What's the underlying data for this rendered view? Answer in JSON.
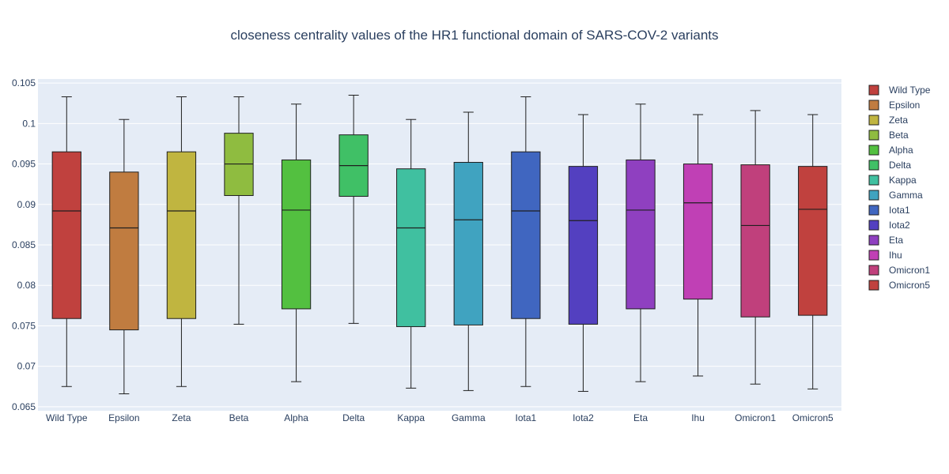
{
  "chart_data": {
    "type": "box",
    "title": "closeness centrality values of the HR1 functional domain of SARS-COV-2 variants",
    "xlabel": "",
    "ylabel": "",
    "ylim": [
      0.0645,
      0.1055
    ],
    "yticks": [
      0.065,
      0.07,
      0.075,
      0.08,
      0.085,
      0.09,
      0.095,
      0.1,
      0.105
    ],
    "ytick_labels": [
      "0.065",
      "0.07",
      "0.075",
      "0.08",
      "0.085",
      "0.09",
      "0.095",
      "0.1",
      "0.105"
    ],
    "legend_position": "right",
    "grid": true,
    "categories": [
      "Wild Type",
      "Epsilon",
      "Zeta",
      "Beta",
      "Alpha",
      "Delta",
      "Kappa",
      "Gamma",
      "Iota1",
      "Iota2",
      "Eta",
      "Ihu",
      "Omicron1",
      "Omicron5"
    ],
    "series": [
      {
        "name": "Wild Type",
        "color": "#c0413e",
        "min": 0.0675,
        "q1": 0.0759,
        "median": 0.0892,
        "q3": 0.0965,
        "max": 0.1033
      },
      {
        "name": "Epsilon",
        "color": "#c07c40",
        "min": 0.0666,
        "q1": 0.0745,
        "median": 0.0871,
        "q3": 0.094,
        "max": 0.1005
      },
      {
        "name": "Zeta",
        "color": "#c0b540",
        "min": 0.0675,
        "q1": 0.0759,
        "median": 0.0892,
        "q3": 0.0965,
        "max": 0.1033
      },
      {
        "name": "Beta",
        "color": "#8fbc40",
        "min": 0.0752,
        "q1": 0.0911,
        "median": 0.095,
        "q3": 0.0988,
        "max": 0.1033
      },
      {
        "name": "Alpha",
        "color": "#53c040",
        "min": 0.0681,
        "q1": 0.0771,
        "median": 0.0893,
        "q3": 0.0955,
        "max": 0.1024
      },
      {
        "name": "Delta",
        "color": "#40c066",
        "min": 0.0753,
        "q1": 0.091,
        "median": 0.0948,
        "q3": 0.0986,
        "max": 0.1035
      },
      {
        "name": "Kappa",
        "color": "#40c0a0",
        "min": 0.0673,
        "q1": 0.0749,
        "median": 0.0871,
        "q3": 0.0944,
        "max": 0.1005
      },
      {
        "name": "Gamma",
        "color": "#40a3c0",
        "min": 0.067,
        "q1": 0.0751,
        "median": 0.0881,
        "q3": 0.0952,
        "max": 0.1014
      },
      {
        "name": "Iota1",
        "color": "#4066c0",
        "min": 0.0675,
        "q1": 0.0759,
        "median": 0.0892,
        "q3": 0.0965,
        "max": 0.1033
      },
      {
        "name": "Iota2",
        "color": "#5340c0",
        "min": 0.0669,
        "q1": 0.0752,
        "median": 0.088,
        "q3": 0.0947,
        "max": 0.1011
      },
      {
        "name": "Eta",
        "color": "#8f40c0",
        "min": 0.0681,
        "q1": 0.0771,
        "median": 0.0893,
        "q3": 0.0955,
        "max": 0.1024
      },
      {
        "name": "Ihu",
        "color": "#c040b5",
        "min": 0.0688,
        "q1": 0.0783,
        "median": 0.0902,
        "q3": 0.095,
        "max": 0.1011
      },
      {
        "name": "Omicron1",
        "color": "#c0407c",
        "min": 0.0678,
        "q1": 0.0761,
        "median": 0.0874,
        "q3": 0.0949,
        "max": 0.1016
      },
      {
        "name": "Omicron5",
        "color": "#c0413e",
        "min": 0.0672,
        "q1": 0.0763,
        "median": 0.0894,
        "q3": 0.0947,
        "max": 0.1011
      }
    ]
  }
}
